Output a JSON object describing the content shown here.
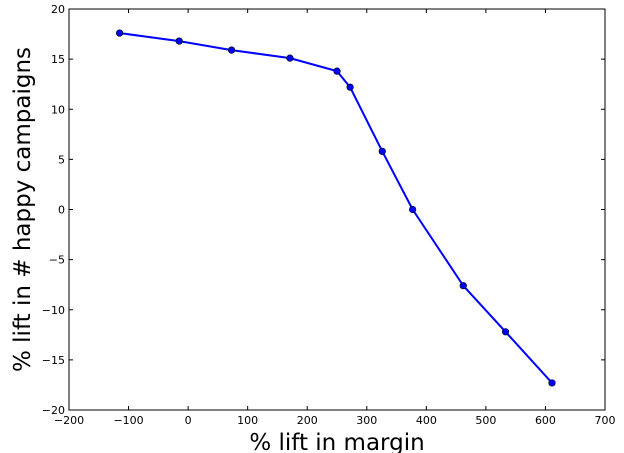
{
  "chart_data": {
    "type": "line",
    "xlabel": "% lift in margin",
    "ylabel": "% lift in # happy campaigns",
    "xlim": [
      -200,
      700
    ],
    "ylim": [
      -20,
      20
    ],
    "xticks": [
      -200,
      -100,
      0,
      100,
      200,
      300,
      400,
      500,
      600,
      700
    ],
    "yticks": [
      -20,
      -15,
      -10,
      -5,
      0,
      5,
      10,
      15,
      20
    ],
    "xtick_labels": [
      "−200",
      "−100",
      "0",
      "100",
      "200",
      "300",
      "400",
      "500",
      "600",
      "700"
    ],
    "ytick_labels": [
      "−20",
      "−15",
      "−10",
      "−5",
      "0",
      "5",
      "10",
      "15",
      "20"
    ],
    "grid": false,
    "legend": "none",
    "series": [
      {
        "color": "#0000ff",
        "marker": "circle",
        "x": [
          -115,
          -15,
          73,
          171,
          250,
          272,
          326,
          377,
          462,
          533,
          611
        ],
        "y": [
          17.6,
          16.8,
          15.9,
          15.1,
          13.8,
          12.2,
          5.8,
          0.0,
          -7.6,
          -12.2,
          -17.3
        ]
      }
    ]
  }
}
